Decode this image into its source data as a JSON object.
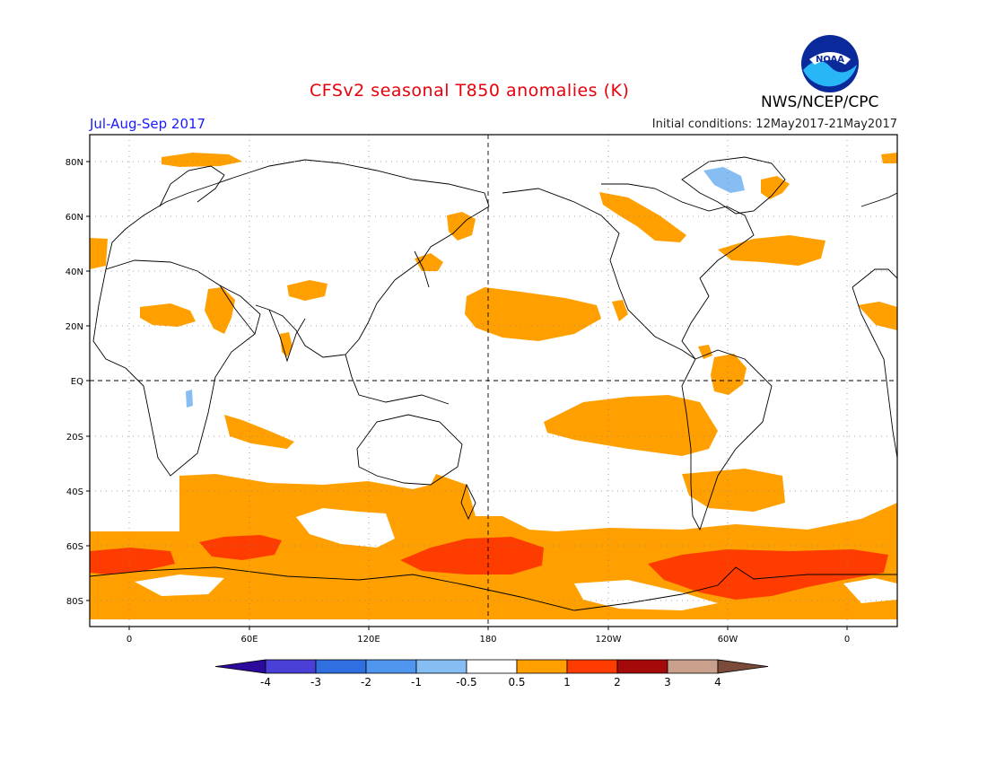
{
  "title": "CFSv2 seasonal T850 anomalies (K)",
  "season": "Jul-Aug-Sep 2017",
  "initial_conditions": "Initial conditions: 12May2017-21May2017",
  "agency": "NWS/NCEP/CPC",
  "logo_text": "NOAA",
  "lat_labels": [
    "80N",
    "60N",
    "40N",
    "20N",
    "EQ",
    "20S",
    "40S",
    "60S",
    "80S"
  ],
  "lon_labels": [
    "0",
    "60E",
    "120E",
    "180",
    "120W",
    "60W",
    "0"
  ],
  "colorbar": {
    "labels": [
      "-4",
      "-3",
      "-2",
      "-1",
      "-0.5",
      "0.5",
      "1",
      "2",
      "3",
      "4"
    ],
    "colors": [
      "#2c0a9c",
      "#4a3fd6",
      "#2f6fe0",
      "#4f96ee",
      "#86bdf3",
      "#ffffff",
      "#ffa000",
      "#ff3c00",
      "#a50a0a",
      "#c9a08c",
      "#7a4a3a"
    ]
  },
  "colors": {
    "warm_1": "#ffa000",
    "warm_2": "#ff3c00",
    "cool_1": "#86bdf3",
    "coast": "#000000"
  }
}
